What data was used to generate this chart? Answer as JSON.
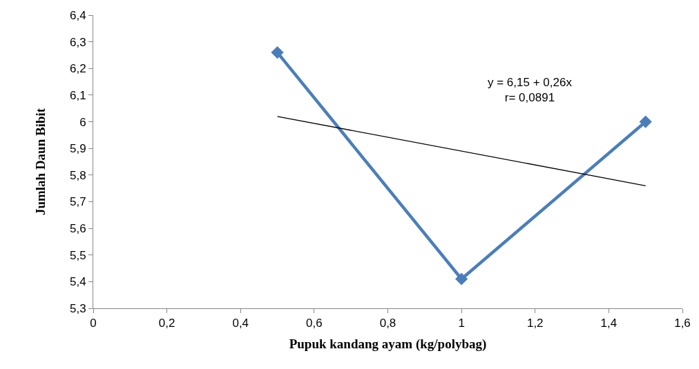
{
  "chart_data": {
    "type": "line",
    "xlabel": "Pupuk kandang ayam (kg/polybag)",
    "ylabel": "Jumlah Daun Bibit",
    "series": [
      {
        "color": "#4a7ebb",
        "x": [
          0.5,
          1,
          1.5
        ],
        "values": [
          6.26,
          5.41,
          6.0
        ],
        "marker": "diamond"
      },
      {
        "color": "#000000",
        "x": [
          0.5,
          1.5
        ],
        "values": [
          6.02,
          5.76
        ],
        "marker": "none"
      }
    ],
    "annotations": [
      "y = 6,15 + 0,26x\nr= 0,0891"
    ],
    "xlim": [
      0,
      1.6
    ],
    "xticks": [
      {
        "value": 0,
        "label": "0"
      },
      {
        "value": 0.2,
        "label": "0,2"
      },
      {
        "value": 0.4,
        "label": "0,4"
      },
      {
        "value": 0.6,
        "label": "0,6"
      },
      {
        "value": 0.8,
        "label": "0,8"
      },
      {
        "value": 1,
        "label": "1"
      },
      {
        "value": 1.2,
        "label": "1,2"
      },
      {
        "value": 1.4,
        "label": "1,4"
      },
      {
        "value": 1.6,
        "label": "1,6"
      }
    ],
    "ylim": [
      5.3,
      6.4
    ],
    "yticks": [
      {
        "value": 5.3,
        "label": "5,3"
      },
      {
        "value": 5.4,
        "label": "5,4"
      },
      {
        "value": 5.5,
        "label": "5,5"
      },
      {
        "value": 5.6,
        "label": "5,6"
      },
      {
        "value": 5.7,
        "label": "5,7"
      },
      {
        "value": 5.8,
        "label": "5,8"
      },
      {
        "value": 5.9,
        "label": "5,9"
      },
      {
        "value": 6,
        "label": "6"
      },
      {
        "value": 6.1,
        "label": "6,1"
      },
      {
        "value": 6.2,
        "label": "6,2"
      },
      {
        "value": 6.3,
        "label": "6,3"
      },
      {
        "value": 6.4,
        "label": "6,4"
      }
    ]
  }
}
